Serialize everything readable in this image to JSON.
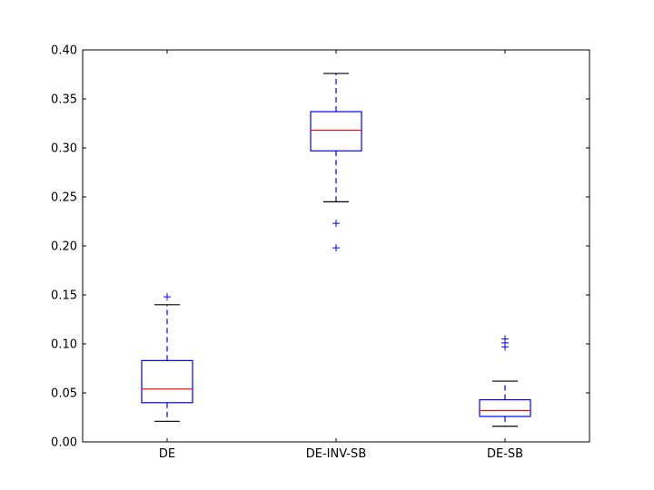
{
  "chart_data": {
    "type": "box",
    "title": "",
    "xlabel": "",
    "ylabel": "",
    "ylim": [
      0.0,
      0.4
    ],
    "yticks": [
      "0.00",
      "0.05",
      "0.10",
      "0.15",
      "0.20",
      "0.25",
      "0.30",
      "0.35",
      "0.40"
    ],
    "grid": false,
    "categories": [
      "DE",
      "DE-INV-SB",
      "DE-SB"
    ],
    "boxes": [
      {
        "whisker_low": 0.021,
        "q1": 0.04,
        "median": 0.054,
        "q3": 0.083,
        "whisker_high": 0.14,
        "outliers": [
          0.148
        ]
      },
      {
        "whisker_low": 0.245,
        "q1": 0.297,
        "median": 0.318,
        "q3": 0.337,
        "whisker_high": 0.376,
        "outliers": [
          0.223,
          0.198
        ]
      },
      {
        "whisker_low": 0.016,
        "q1": 0.026,
        "median": 0.032,
        "q3": 0.043,
        "whisker_high": 0.062,
        "outliers": [
          0.097,
          0.101,
          0.105
        ]
      }
    ],
    "colors": {
      "box": "#0000ff",
      "median": "#ff0000",
      "cap": "#000000",
      "whisker": "#0000ff",
      "flier": "#0000ff"
    }
  }
}
